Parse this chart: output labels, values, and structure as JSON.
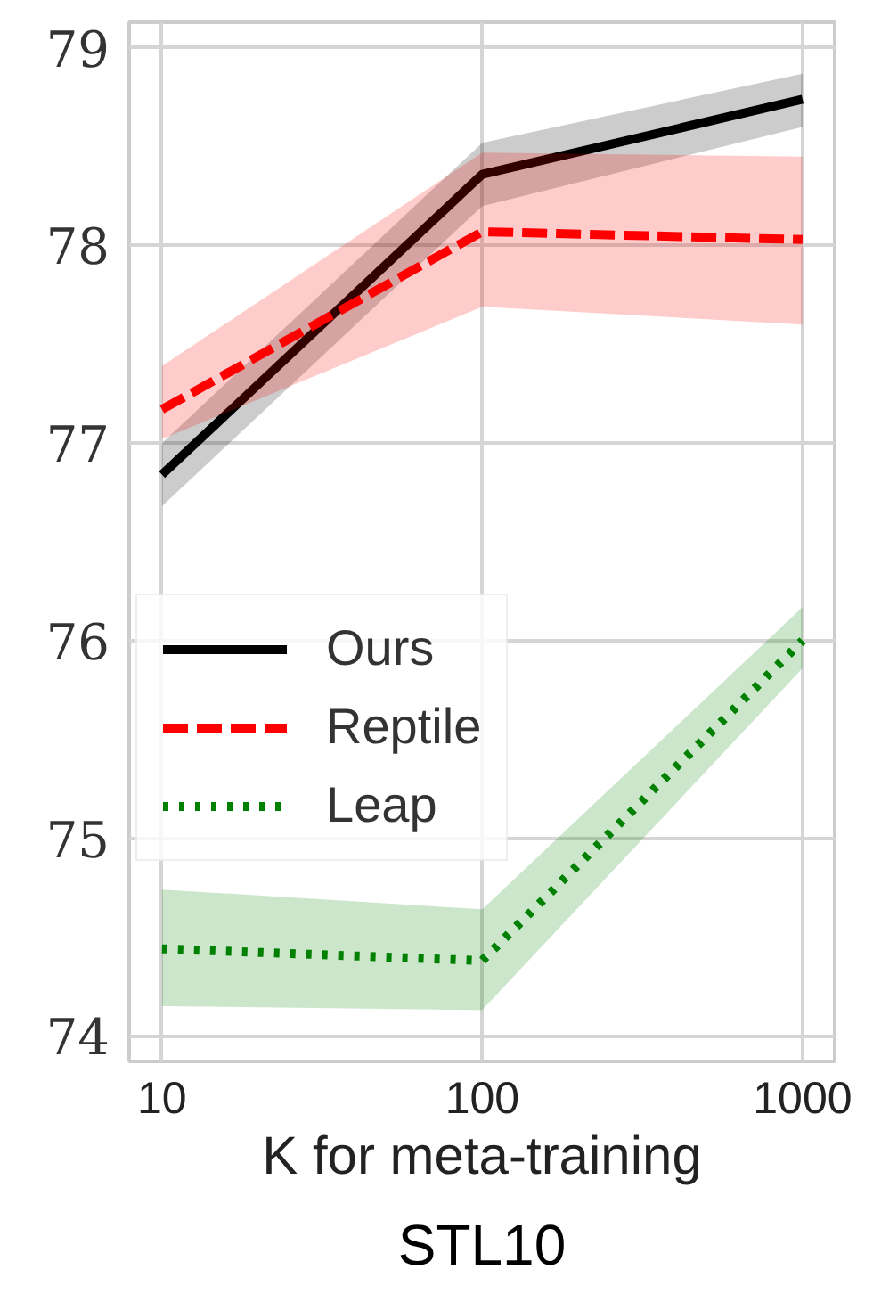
{
  "chart_data": {
    "type": "line",
    "xlabel": "K for meta-training",
    "annotations": [
      "STL10"
    ],
    "x": [
      10,
      100,
      1000
    ],
    "log": "x",
    "xlim": [
      7.9,
      1260
    ],
    "ylim": [
      73.87,
      79.13
    ],
    "xticks": [
      10,
      100,
      1000
    ],
    "yticks": [
      74,
      75,
      76,
      77,
      78,
      79
    ],
    "grid": true,
    "legend": "left",
    "marker": "none",
    "series": [
      {
        "name": "Ours",
        "color": "#000000",
        "line_style": "solid",
        "values": [
          76.84,
          78.36,
          78.74
        ],
        "lower": [
          76.68,
          78.2,
          78.6
        ],
        "upper": [
          77.0,
          78.52,
          78.87
        ]
      },
      {
        "name": "Reptile",
        "color": "#ff0000",
        "line_style": "dashed",
        "values": [
          77.17,
          78.07,
          78.03
        ],
        "lower": [
          77.02,
          77.69,
          77.6
        ],
        "upper": [
          77.39,
          78.47,
          78.45
        ]
      },
      {
        "name": "Leap",
        "color": "#008000",
        "line_style": "dotted",
        "values": [
          74.44,
          74.38,
          76.0
        ],
        "lower": [
          74.15,
          74.13,
          75.86
        ],
        "upper": [
          74.74,
          74.64,
          76.17
        ]
      }
    ]
  }
}
